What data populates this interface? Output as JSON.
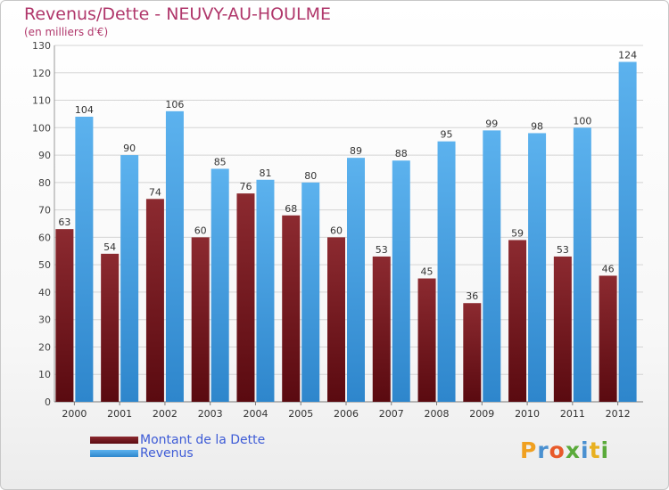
{
  "chart_data": {
    "type": "bar",
    "title": "Revenus/Dette - NEUVY-AU-HOULME",
    "subtitle": "(en milliers d'€)",
    "xlabel": "",
    "ylabel": "",
    "ylim": [
      0,
      130
    ],
    "yticks": [
      0,
      10,
      20,
      30,
      40,
      50,
      60,
      70,
      80,
      90,
      100,
      110,
      120,
      130
    ],
    "grid": true,
    "categories": [
      "2000",
      "2001",
      "2002",
      "2003",
      "2004",
      "2005",
      "2006",
      "2007",
      "2008",
      "2009",
      "2010",
      "2011",
      "2012"
    ],
    "series": [
      {
        "name": "Montant de la Dette",
        "color": "#7a1c22",
        "values": [
          63,
          54,
          74,
          60,
          76,
          68,
          60,
          53,
          45,
          36,
          59,
          53,
          46
        ]
      },
      {
        "name": "Revenus",
        "color": "#4ea6e6",
        "values": [
          104,
          90,
          106,
          85,
          81,
          80,
          89,
          88,
          95,
          99,
          98,
          100,
          124
        ]
      }
    ],
    "legend_position": "bottom-left"
  },
  "logo": {
    "letters": [
      "P",
      "r",
      "o",
      "x",
      "i",
      "t",
      "i"
    ],
    "colors": [
      "#f0a020",
      "#4a90d0",
      "#e85a2a",
      "#5aaa3a",
      "#4a90d0",
      "#e8b020",
      "#5aaa3a"
    ]
  }
}
